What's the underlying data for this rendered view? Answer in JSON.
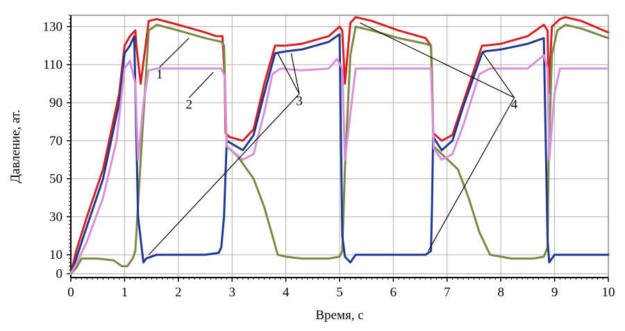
{
  "chart_data": {
    "type": "line",
    "xlabel": "Время, с",
    "ylabel": "Давление, ат.",
    "xlim": [
      0,
      10
    ],
    "ylim": [
      -2,
      136
    ],
    "xticks": [
      "0",
      "1",
      "2",
      "3",
      "4",
      "5",
      "6",
      "7",
      "8",
      "9",
      "10"
    ],
    "yticks": [
      "0",
      "10",
      "30",
      "50",
      "70",
      "90",
      "110",
      "130"
    ],
    "grid": true,
    "series": [
      {
        "name": "1",
        "color": "#d42020",
        "x": [
          0,
          0.1,
          0.3,
          0.6,
          0.9,
          1.0,
          1.1,
          1.2,
          1.22,
          1.3,
          1.45,
          1.6,
          2.0,
          2.5,
          2.7,
          2.82,
          2.86,
          2.88,
          2.95,
          3.2,
          3.4,
          3.6,
          3.8,
          4.0,
          4.3,
          4.8,
          5.0,
          5.05,
          5.1,
          5.2,
          5.3,
          5.6,
          6.1,
          6.6,
          6.7,
          6.72,
          6.74,
          6.9,
          7.1,
          7.3,
          7.65,
          7.7,
          8.0,
          8.5,
          8.8,
          8.87,
          8.89,
          8.95,
          9.1,
          9.2,
          9.5,
          10
        ],
        "y": [
          0,
          12,
          30,
          55,
          95,
          120,
          125,
          128,
          120,
          100,
          133,
          134,
          131,
          127,
          125,
          125,
          105,
          74,
          72,
          70,
          76,
          100,
          120,
          120,
          121,
          125,
          130,
          128,
          100,
          132,
          135,
          133,
          128,
          124,
          120,
          105,
          74,
          70,
          73,
          90,
          120,
          120,
          121,
          125,
          131,
          128,
          95,
          130,
          134,
          135,
          133,
          127
        ]
      },
      {
        "name": "2",
        "color": "#7a8a45",
        "x": [
          0,
          0.1,
          0.2,
          0.5,
          0.8,
          0.95,
          1.05,
          1.15,
          1.2,
          1.3,
          1.45,
          1.6,
          2.0,
          2.5,
          2.8,
          2.85,
          2.9,
          3.1,
          3.4,
          3.6,
          3.75,
          3.85,
          4.0,
          4.3,
          4.8,
          5.0,
          5.05,
          5.1,
          5.2,
          5.3,
          5.6,
          6.1,
          6.6,
          6.7,
          6.75,
          6.9,
          7.2,
          7.4,
          7.6,
          7.8,
          8.2,
          8.6,
          8.8,
          8.87,
          8.89,
          8.95,
          9.05,
          9.2,
          9.5,
          10
        ],
        "y": [
          0,
          3,
          8,
          8,
          7,
          4,
          4,
          8,
          12,
          60,
          128,
          131,
          128,
          124,
          122,
          120,
          67,
          62,
          50,
          35,
          20,
          10,
          9,
          8,
          8,
          9,
          12,
          55,
          115,
          130,
          128,
          124,
          121,
          120,
          67,
          63,
          55,
          40,
          22,
          10,
          8,
          8,
          9,
          14,
          60,
          115,
          128,
          131,
          129,
          124
        ]
      },
      {
        "name": "3",
        "color": "#1f3a8f",
        "x": [
          0,
          0.1,
          0.3,
          0.6,
          0.9,
          1.0,
          1.1,
          1.18,
          1.25,
          1.35,
          1.4,
          1.6,
          2.0,
          2.5,
          2.75,
          2.8,
          2.85,
          2.9,
          3.2,
          3.4,
          3.6,
          3.8,
          4.0,
          4.3,
          4.8,
          5.0,
          5.05,
          5.1,
          5.2,
          5.3,
          6.0,
          6.6,
          6.7,
          6.72,
          6.74,
          6.9,
          7.1,
          7.3,
          7.65,
          7.7,
          8.0,
          8.5,
          8.8,
          8.87,
          8.9,
          9.0,
          9.1,
          9.2,
          10
        ],
        "y": [
          0,
          8,
          25,
          50,
          90,
          116,
          120,
          125,
          30,
          6,
          8,
          10,
          10,
          10,
          11,
          14,
          30,
          70,
          65,
          73,
          95,
          116,
          117,
          118,
          122,
          126,
          20,
          9,
          6,
          10,
          10,
          10,
          12,
          35,
          72,
          65,
          70,
          88,
          116,
          117,
          118,
          121,
          124,
          18,
          6,
          10,
          10,
          10,
          10
        ]
      },
      {
        "name": "4",
        "color": "#d890d8",
        "x": [
          0,
          0.1,
          0.3,
          0.6,
          0.85,
          1.0,
          1.1,
          1.2,
          1.25,
          1.35,
          1.45,
          1.6,
          2.0,
          2.5,
          2.8,
          2.86,
          2.9,
          3.2,
          3.4,
          3.6,
          3.75,
          3.9,
          4.3,
          4.8,
          4.95,
          5.05,
          5.1,
          5.3,
          6.0,
          6.6,
          6.7,
          6.75,
          6.9,
          7.1,
          7.3,
          7.6,
          7.8,
          8.5,
          8.8,
          8.87,
          8.9,
          9.0,
          9.1,
          9.2,
          10
        ],
        "y": [
          0,
          5,
          17,
          40,
          70,
          108,
          112,
          100,
          60,
          90,
          107,
          108,
          108,
          108,
          108,
          104,
          67,
          60,
          63,
          85,
          105,
          108,
          107,
          108,
          113,
          108,
          60,
          108,
          108,
          108,
          108,
          66,
          60,
          63,
          78,
          105,
          108,
          108,
          115,
          108,
          60,
          95,
          108,
          108,
          108
        ]
      }
    ],
    "annotations": [
      {
        "label": "1",
        "text_at": [
          1.65,
          105
        ],
        "lines_to": [
          [
            2.2,
            124
          ]
        ]
      },
      {
        "label": "2",
        "text_at": [
          2.2,
          89
        ],
        "lines_to": [
          [
            2.65,
            106
          ]
        ]
      },
      {
        "label": "3",
        "text_at": [
          4.25,
          91
        ],
        "lines_to": [
          [
            3.85,
            116
          ],
          [
            4.1,
            116
          ],
          [
            1.45,
            10
          ]
        ]
      },
      {
        "label": "4",
        "text_at": [
          8.25,
          89
        ],
        "lines_to": [
          [
            5.38,
            132
          ],
          [
            7.65,
            117
          ],
          [
            6.65,
            12
          ]
        ]
      }
    ]
  }
}
